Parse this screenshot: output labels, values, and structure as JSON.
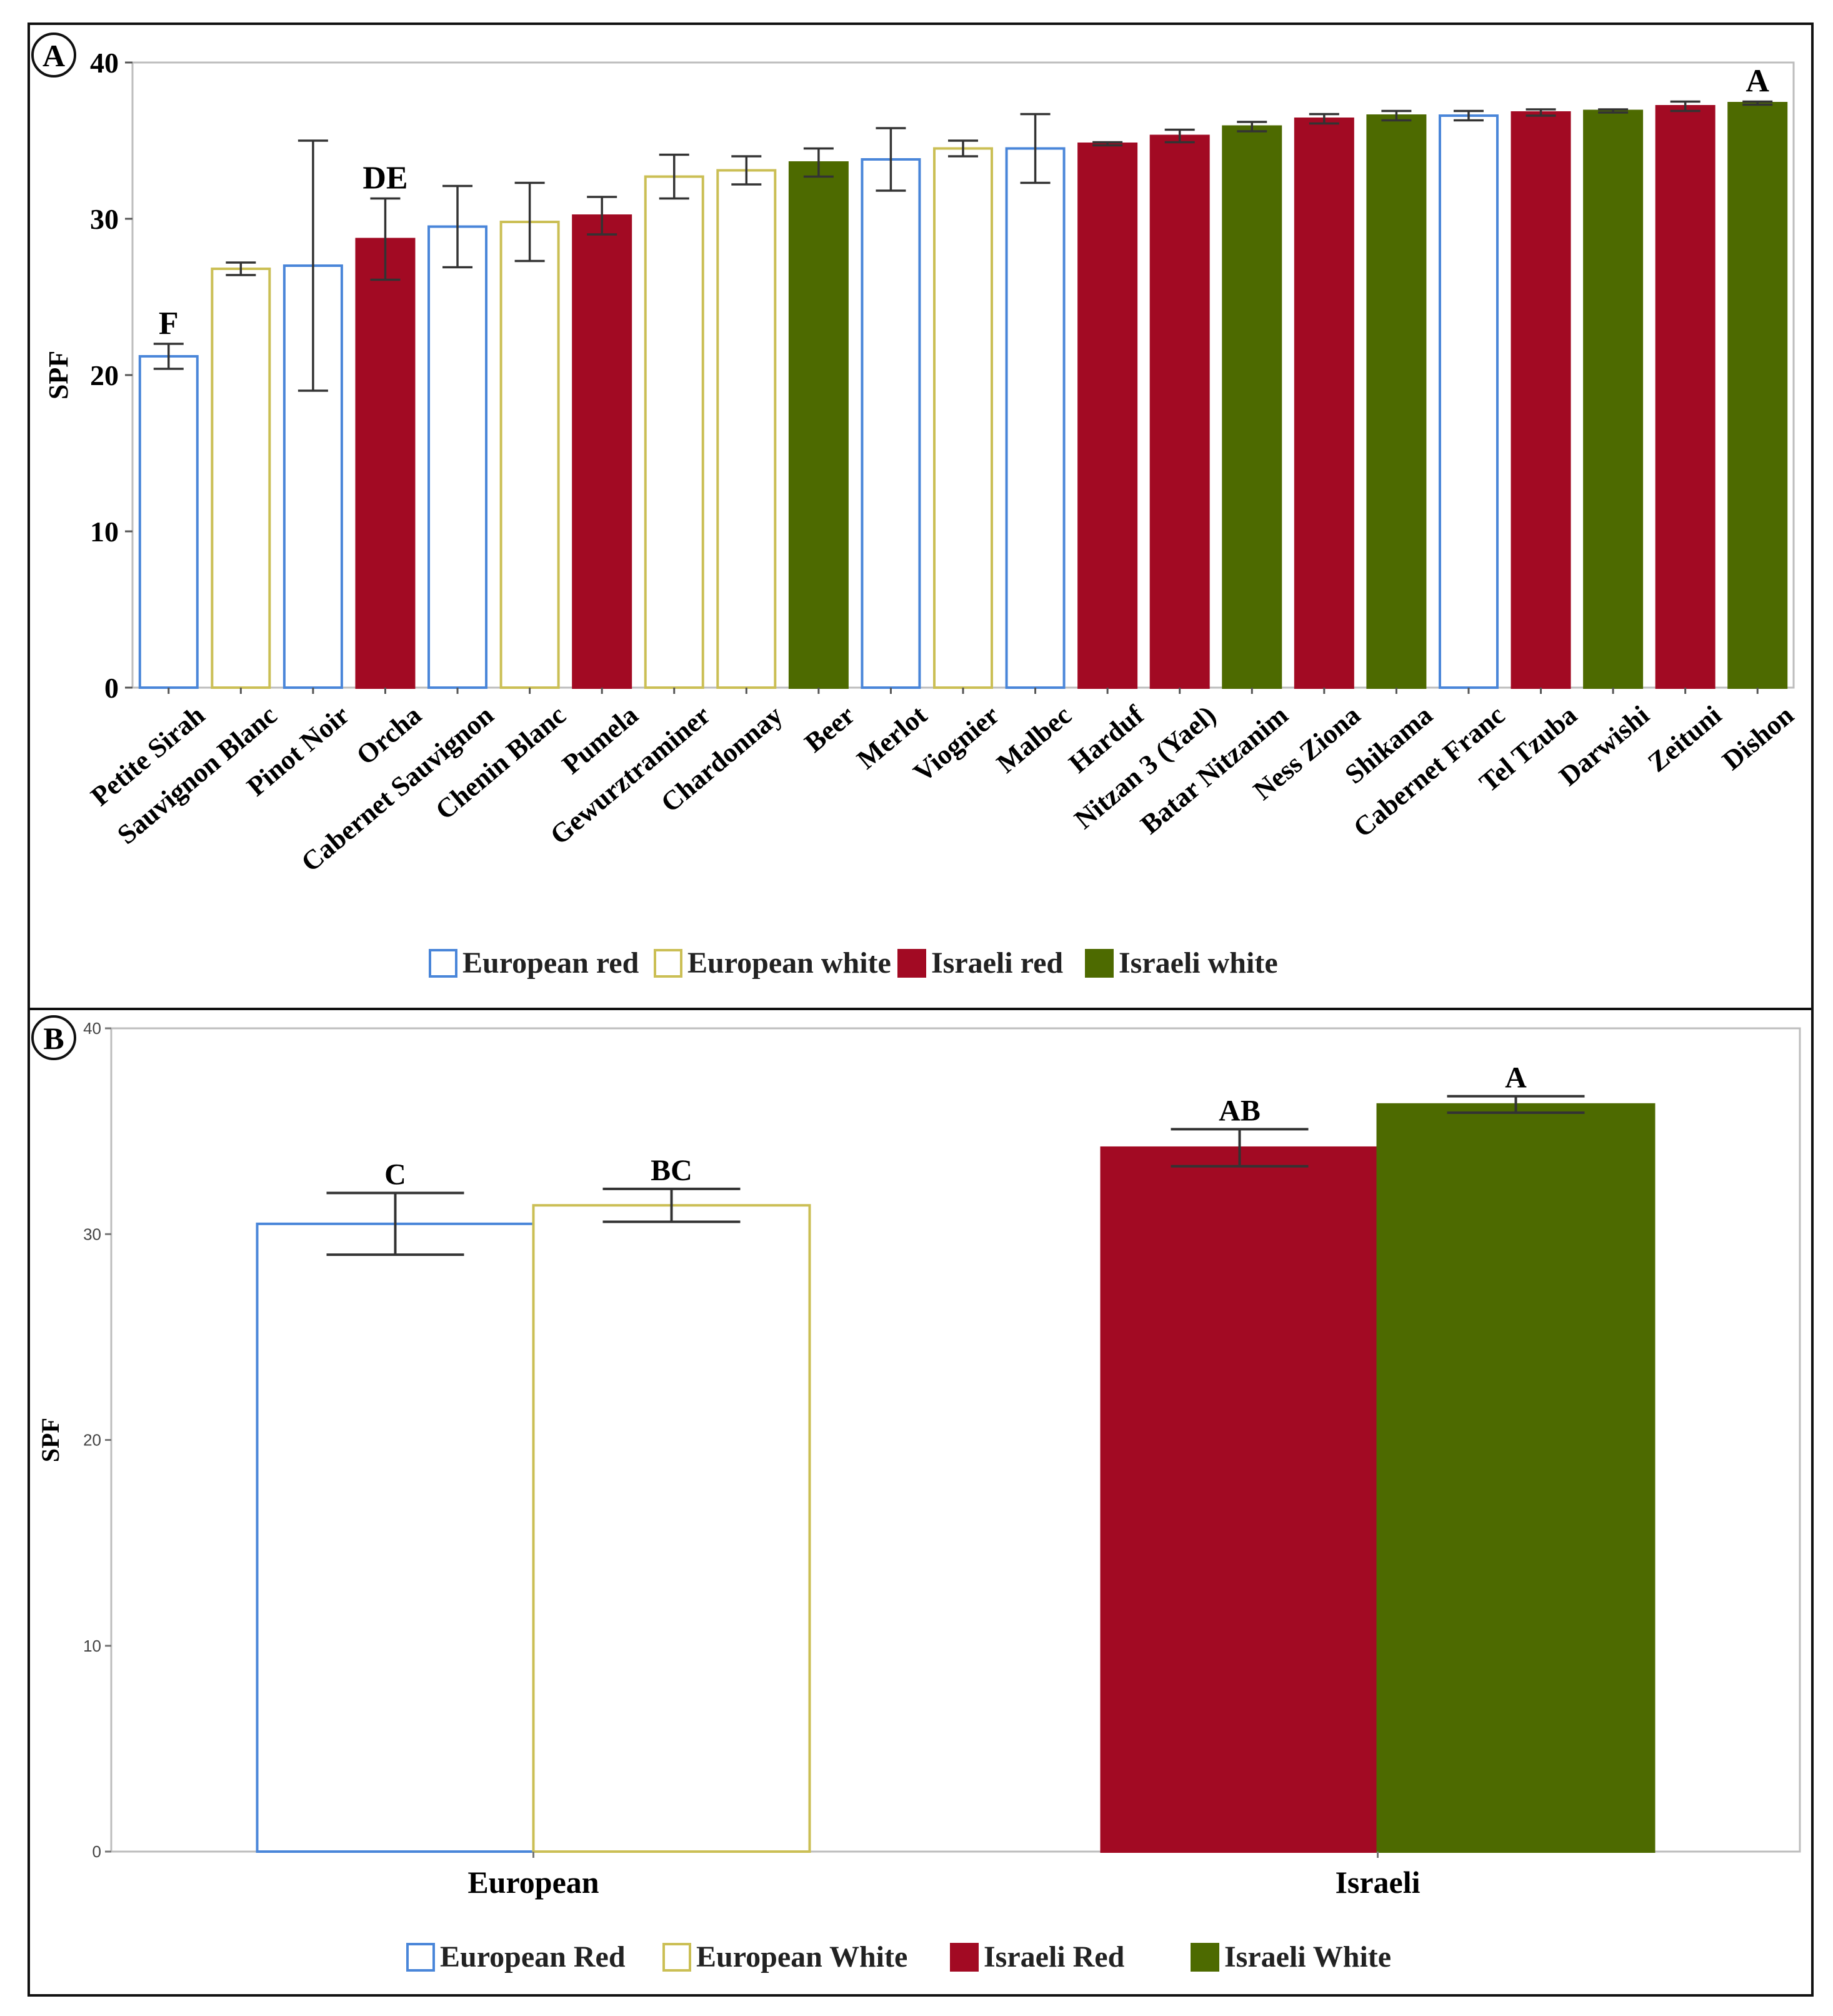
{
  "colors": {
    "european_red": "#4a86d9",
    "european_white": "#cbbf55",
    "israeli_red": "#a20a23",
    "israeli_white": "#4d6a00",
    "error_bar": "#333333",
    "frame": "#111111",
    "plot_border": "#bdbdbd"
  },
  "chart_data": [
    {
      "panel": "A",
      "type": "bar",
      "title": "",
      "xlabel": "",
      "ylabel": "SPF",
      "ylim": [
        0,
        40
      ],
      "yticks": [
        "0",
        "10",
        "20",
        "30",
        "40"
      ],
      "grid": false,
      "legend_position": "bottom",
      "legend": [
        {
          "label": "European red",
          "group": "european_red"
        },
        {
          "label": "European white",
          "group": "european_white"
        },
        {
          "label": "Israeli red",
          "group": "israeli_red"
        },
        {
          "label": "Israeli white",
          "group": "israeli_white"
        }
      ],
      "categories": [
        "Petite Sirah",
        "Sauvignon Blanc",
        "Pinot Noir",
        "Orcha",
        "Cabernet Sauvignon",
        "Chenin Blanc",
        "Pumela",
        "Gewurztraminer",
        "Chardonnay",
        "Beer",
        "Merlot",
        "Viognier",
        "Malbec",
        "Harduf",
        "Nitzan 3 (Yael)",
        "Batar Nitzanim",
        "Ness Ziona",
        "Shikama",
        "Cabernet Franc",
        "Tel Tzuba",
        "Darwishi",
        "Zeituni",
        "Dishon"
      ],
      "groups": [
        "european_red",
        "european_white",
        "european_red",
        "israeli_red",
        "european_red",
        "european_white",
        "israeli_red",
        "european_white",
        "european_white",
        "israeli_white",
        "european_red",
        "european_white",
        "european_red",
        "israeli_red",
        "israeli_red",
        "israeli_white",
        "israeli_red",
        "israeli_white",
        "european_red",
        "israeli_red",
        "israeli_white",
        "israeli_red",
        "israeli_white"
      ],
      "values": [
        21.2,
        26.8,
        27.0,
        28.7,
        29.5,
        29.8,
        30.2,
        32.7,
        33.1,
        33.6,
        33.8,
        34.5,
        34.5,
        34.8,
        35.3,
        35.9,
        36.4,
        36.6,
        36.6,
        36.8,
        36.9,
        37.2,
        37.4
      ],
      "errors": [
        0.8,
        0.4,
        8.0,
        2.6,
        2.6,
        2.5,
        1.2,
        1.4,
        0.9,
        0.9,
        2.0,
        0.5,
        2.2,
        0.1,
        0.4,
        0.3,
        0.3,
        0.3,
        0.3,
        0.2,
        0.1,
        0.3,
        0.1
      ],
      "annotations": [
        {
          "category": "Petite Sirah",
          "text": "F"
        },
        {
          "category": "Orcha",
          "text": "DE"
        },
        {
          "category": "Dishon",
          "text": "A"
        }
      ]
    },
    {
      "panel": "B",
      "type": "bar",
      "title": "",
      "xlabel": "",
      "ylabel": "SPF",
      "ylim": [
        0,
        40
      ],
      "yticks": [
        "0",
        "10",
        "20",
        "30",
        "40"
      ],
      "grid": false,
      "legend_position": "bottom",
      "legend": [
        {
          "label": "European Red",
          "group": "european_red"
        },
        {
          "label": "European White",
          "group": "european_white"
        },
        {
          "label": "Israeli Red",
          "group": "israeli_red"
        },
        {
          "label": "Israeli White",
          "group": "israeli_white"
        }
      ],
      "categories": [
        "European",
        "Israeli"
      ],
      "series": [
        {
          "name": "Red",
          "groups": [
            "european_red",
            "israeli_red"
          ],
          "values": [
            30.5,
            34.2
          ],
          "errors": [
            1.5,
            0.9
          ],
          "letters": [
            "C",
            "AB"
          ]
        },
        {
          "name": "White",
          "groups": [
            "european_white",
            "israeli_white"
          ],
          "values": [
            31.4,
            36.3
          ],
          "errors": [
            0.8,
            0.4
          ],
          "letters": [
            "BC",
            "A"
          ]
        }
      ]
    }
  ],
  "panel_labels": [
    "A",
    "B"
  ]
}
